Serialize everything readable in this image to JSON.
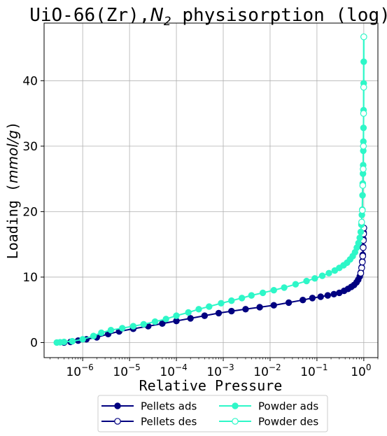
{
  "chart_data": {
    "type": "line",
    "title_main": "UiO-66(Zr),",
    "title_math": "N",
    "title_math_sub": "2",
    "title_rest": " physisorption (log)",
    "xlabel": "Relative Pressure",
    "ylabel_text": "Loading (",
    "ylabel_math": "mmol/g",
    "ylabel_close": ")",
    "xscale": "log",
    "xlim": [
      1.5e-07,
      2.0
    ],
    "ylim": [
      -2.3,
      48.8
    ],
    "grid": true,
    "legend_placement": "bottom-center",
    "x_ticks": [
      {
        "value": 1e-06,
        "base": "10",
        "exp": "−6"
      },
      {
        "value": 1e-05,
        "base": "10",
        "exp": "−5"
      },
      {
        "value": 0.0001,
        "base": "10",
        "exp": "−4"
      },
      {
        "value": 0.001,
        "base": "10",
        "exp": "−3"
      },
      {
        "value": 0.01,
        "base": "10",
        "exp": "−2"
      },
      {
        "value": 0.1,
        "base": "10",
        "exp": "−1"
      },
      {
        "value": 1,
        "base": "10",
        "exp": "0"
      }
    ],
    "y_ticks": [
      {
        "value": 0,
        "label": "0"
      },
      {
        "value": 10,
        "label": "10"
      },
      {
        "value": 20,
        "label": "20"
      },
      {
        "value": 30,
        "label": "30"
      },
      {
        "value": 40,
        "label": "40"
      }
    ],
    "series": [
      {
        "name": "Pellets ads",
        "color": "#000080",
        "marker": "filled",
        "points": [
          [
            4e-07,
            0.0
          ],
          [
            5.5e-07,
            0.1
          ],
          [
            8e-07,
            0.3
          ],
          [
            1.2e-06,
            0.5
          ],
          [
            2e-06,
            0.8
          ],
          [
            3.5e-06,
            1.3
          ],
          [
            6e-06,
            1.7
          ],
          [
            1.2e-05,
            2.1
          ],
          [
            2.5e-05,
            2.5
          ],
          [
            5e-05,
            2.9
          ],
          [
            0.0001,
            3.3
          ],
          [
            0.0002,
            3.7
          ],
          [
            0.0004,
            4.1
          ],
          [
            0.0008,
            4.5
          ],
          [
            0.0015,
            4.8
          ],
          [
            0.003,
            5.1
          ],
          [
            0.006,
            5.4
          ],
          [
            0.012,
            5.7
          ],
          [
            0.025,
            6.1
          ],
          [
            0.05,
            6.5
          ],
          [
            0.08,
            6.8
          ],
          [
            0.12,
            7.0
          ],
          [
            0.17,
            7.2
          ],
          [
            0.23,
            7.4
          ],
          [
            0.3,
            7.6
          ],
          [
            0.38,
            7.9
          ],
          [
            0.46,
            8.2
          ],
          [
            0.54,
            8.5
          ],
          [
            0.62,
            8.8
          ],
          [
            0.7,
            9.2
          ],
          [
            0.76,
            9.6
          ],
          [
            0.82,
            10.1
          ],
          [
            0.86,
            10.7
          ],
          [
            0.9,
            11.5
          ],
          [
            0.93,
            12.4
          ],
          [
            0.95,
            13.4
          ],
          [
            0.97,
            14.6
          ],
          [
            0.98,
            15.8
          ],
          [
            0.99,
            16.8
          ],
          [
            1.0,
            17.5
          ]
        ]
      },
      {
        "name": "Pellets des",
        "color": "#000080",
        "marker": "hollow",
        "points": [
          [
            1.0,
            17.5
          ],
          [
            0.99,
            16.6
          ],
          [
            0.98,
            15.6
          ],
          [
            0.97,
            14.5
          ],
          [
            0.95,
            13.2
          ],
          [
            0.93,
            12.3
          ],
          [
            0.9,
            11.4
          ],
          [
            0.86,
            10.6
          ]
        ]
      },
      {
        "name": "Powder ads",
        "color": "#2ef7c8",
        "marker": "filled",
        "points": [
          [
            2.8e-07,
            0.0
          ],
          [
            3.3e-07,
            0.05
          ],
          [
            4e-07,
            0.1
          ],
          [
            6e-07,
            0.2
          ],
          [
            1e-06,
            0.5
          ],
          [
            1.7e-06,
            1.0
          ],
          [
            2.5e-06,
            1.5
          ],
          [
            4e-06,
            1.9
          ],
          [
            7e-06,
            2.2
          ],
          [
            1.2e-05,
            2.5
          ],
          [
            2e-05,
            2.8
          ],
          [
            3.5e-05,
            3.2
          ],
          [
            6e-05,
            3.6
          ],
          [
            0.0001,
            4.1
          ],
          [
            0.00018,
            4.6
          ],
          [
            0.0003,
            5.1
          ],
          [
            0.0005,
            5.5
          ],
          [
            0.0009,
            6.0
          ],
          [
            0.0015,
            6.4
          ],
          [
            0.0025,
            6.8
          ],
          [
            0.004,
            7.2
          ],
          [
            0.007,
            7.6
          ],
          [
            0.012,
            8.0
          ],
          [
            0.02,
            8.4
          ],
          [
            0.035,
            8.9
          ],
          [
            0.06,
            9.4
          ],
          [
            0.09,
            9.8
          ],
          [
            0.13,
            10.2
          ],
          [
            0.18,
            10.6
          ],
          [
            0.24,
            11.0
          ],
          [
            0.3,
            11.4
          ],
          [
            0.37,
            11.8
          ],
          [
            0.44,
            12.2
          ],
          [
            0.51,
            12.7
          ],
          [
            0.58,
            13.2
          ],
          [
            0.65,
            13.8
          ],
          [
            0.71,
            14.5
          ],
          [
            0.77,
            15.2
          ],
          [
            0.82,
            16.0
          ],
          [
            0.86,
            16.9
          ],
          [
            0.89,
            18.0
          ],
          [
            0.91,
            19.5
          ],
          [
            0.93,
            20.3
          ],
          [
            0.94,
            22.5
          ],
          [
            0.95,
            24.3
          ],
          [
            0.96,
            25.8
          ],
          [
            0.97,
            27.1
          ],
          [
            0.975,
            29.3
          ],
          [
            0.98,
            30.7
          ],
          [
            0.985,
            32.8
          ],
          [
            0.99,
            35.5
          ],
          [
            0.995,
            39.6
          ],
          [
            0.998,
            42.9
          ],
          [
            1.0,
            46.7
          ]
        ]
      },
      {
        "name": "Powder des",
        "color": "#2ef7c8",
        "marker": "hollow",
        "points": [
          [
            1.0,
            46.7
          ],
          [
            0.995,
            39.0
          ],
          [
            0.99,
            35.0
          ],
          [
            0.98,
            30.0
          ],
          [
            0.97,
            26.5
          ],
          [
            0.95,
            24.0
          ],
          [
            0.93,
            20.2
          ],
          [
            0.9,
            18.4
          ]
        ]
      }
    ]
  }
}
